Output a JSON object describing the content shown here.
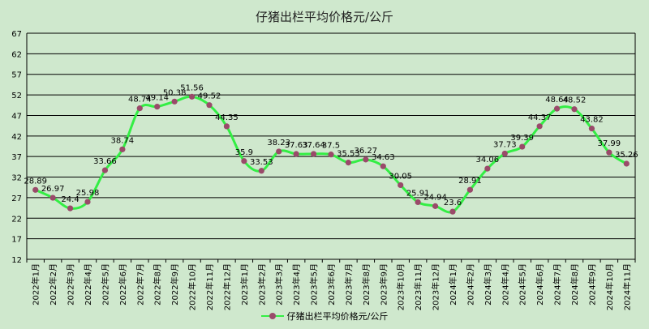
{
  "chart_data": {
    "type": "line",
    "title": "仔猪出栏平均价格元/公斤",
    "xlabel": "",
    "ylabel": "",
    "ylim": [
      12,
      67
    ],
    "yticks": [
      12,
      17,
      22,
      27,
      32,
      37,
      42,
      47,
      52,
      57,
      62,
      67
    ],
    "grid": true,
    "legend_position": "bottom",
    "categories": [
      "2022年1月",
      "2022年2月",
      "2022年3月",
      "2022年4月",
      "2022年5月",
      "2022年6月",
      "2022年7月",
      "2022年8月",
      "2022年9月",
      "2022年10月",
      "2022年11月",
      "2022年12月",
      "2023年1月",
      "2023年2月",
      "2023年3月",
      "2023年4月",
      "2023年5月",
      "2023年6月",
      "2023年7月",
      "2023年8月",
      "2023年9月",
      "2023年10月",
      "2023年11月",
      "2023年12月",
      "2024年1月",
      "2024年2月",
      "2024年3月",
      "2024年4月",
      "2024年5月",
      "2024年6月",
      "2024年7月",
      "2024年8月",
      "2024年9月",
      "2024年10月",
      "2024年11月"
    ],
    "series": [
      {
        "name": "仔猪出栏平均价格元/公斤",
        "values": [
          28.89,
          26.97,
          24.4,
          25.98,
          33.66,
          38.74,
          48.74,
          49.14,
          50.38,
          51.56,
          49.52,
          44.35,
          35.9,
          33.53,
          38.23,
          37.63,
          37.64,
          37.5,
          35.53,
          36.27,
          34.63,
          30.05,
          25.91,
          24.94,
          23.6,
          28.91,
          34.06,
          37.73,
          39.39,
          44.37,
          48.64,
          48.52,
          43.82,
          37.99,
          35.26
        ],
        "labels": [
          "28.89",
          "26.97",
          "24.4",
          "25.98",
          "33.66",
          "38.74",
          "48.74",
          "49.14",
          "50.38",
          "51.56",
          "49.52",
          "44.35",
          "35.9",
          "33.53",
          "38.23",
          "37.63",
          "37.64",
          "37.5",
          "35.53",
          "36.27",
          "34.63",
          "30.05",
          "25.91",
          "24.94",
          "23.6",
          "28.91",
          "34.06",
          "37.73",
          "39.39",
          "44.37",
          "48.64",
          "48.52",
          "43.82",
          "37.99",
          "35.26"
        ]
      }
    ],
    "colors": {
      "line": "#33ee44",
      "marker": "#9a4a6a",
      "grid": "#000000",
      "background": "#cfe8cd"
    }
  }
}
